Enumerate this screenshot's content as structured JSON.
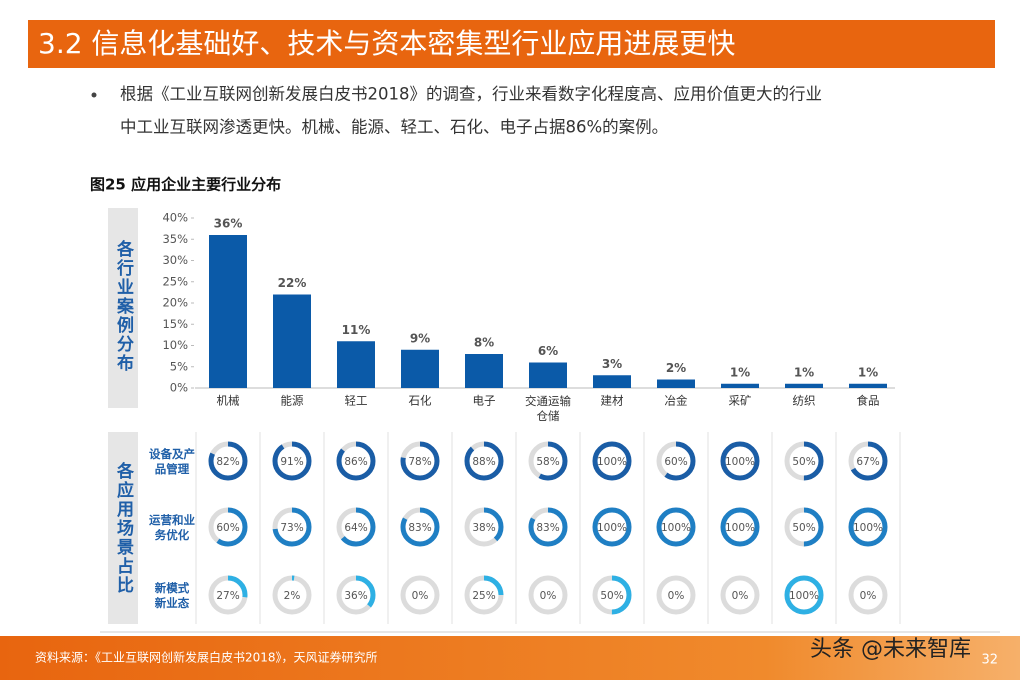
{
  "header": {
    "title": "3.2 信息化基础好、技术与资本密集型行业应用进展更快"
  },
  "bullet": {
    "lines": [
      "根据《工业互联网创新发展白皮书2018》的调查，行业来看数字化程度高、应用价值更大的行业",
      "中工业互联网渗透更快。机械、能源、轻工、石化、电子占据86%的案例。"
    ]
  },
  "figure_title": "图25 应用企业主要行业分布",
  "chart_data": [
    {
      "type": "bar",
      "y_label": "各行业案例分布",
      "categories": [
        "机械",
        "能源",
        "轻工",
        "石化",
        "电子",
        "交通运输仓储",
        "建材",
        "冶金",
        "采矿",
        "纺织",
        "食品"
      ],
      "values": [
        36,
        22,
        11,
        9,
        8,
        6,
        3,
        2,
        1,
        1,
        1
      ],
      "value_labels": [
        "36%",
        "22%",
        "11%",
        "9%",
        "8%",
        "6%",
        "3%",
        "2%",
        "1%",
        "1%",
        "1%"
      ],
      "color": "#0b5aa8",
      "ylim": [
        0,
        40
      ],
      "yticks": [
        {
          "value": 0,
          "label": "0%"
        },
        {
          "value": 5,
          "label": "5%"
        },
        {
          "value": 10,
          "label": "10%"
        },
        {
          "value": 15,
          "label": "15%"
        },
        {
          "value": 20,
          "label": "20%"
        },
        {
          "value": 25,
          "label": "25%"
        },
        {
          "value": 30,
          "label": "30%"
        },
        {
          "value": 35,
          "label": "35%"
        },
        {
          "value": 40,
          "label": "40%"
        }
      ]
    },
    {
      "type": "donut",
      "y_label": "各应用场景占比",
      "track_color": "#dcdcdc",
      "series": [
        {
          "name": "设备及产品管理",
          "color": "#1a5da6",
          "values": [
            82,
            91,
            86,
            78,
            88,
            58,
            100,
            60,
            100,
            50,
            67
          ],
          "value_labels": [
            "82%",
            "91%",
            "86%",
            "78%",
            "88%",
            "58%",
            "100%",
            "60%",
            "100%",
            "50%",
            "67%"
          ]
        },
        {
          "name": "运营和业务优化",
          "color": "#1f7fc4",
          "values": [
            60,
            73,
            64,
            83,
            38,
            83,
            100,
            100,
            100,
            50,
            100
          ],
          "value_labels": [
            "60%",
            "73%",
            "64%",
            "83%",
            "38%",
            "83%",
            "100%",
            "100%",
            "100%",
            "50%",
            "100%"
          ]
        },
        {
          "name": "新模式新业态",
          "color": "#2eb0e4",
          "values": [
            27,
            2,
            36,
            0,
            25,
            0,
            50,
            0,
            0,
            100,
            0
          ],
          "value_labels": [
            "27%",
            "2%",
            "36%",
            "0%",
            "25%",
            "0%",
            "50%",
            "0%",
            "0%",
            "100%",
            "0%"
          ]
        }
      ]
    }
  ],
  "source": "资料来源：《工业互联网创新发展白皮书2018》，天风证券研究所",
  "watermark": "头条 @未来智库",
  "page_number": "32"
}
